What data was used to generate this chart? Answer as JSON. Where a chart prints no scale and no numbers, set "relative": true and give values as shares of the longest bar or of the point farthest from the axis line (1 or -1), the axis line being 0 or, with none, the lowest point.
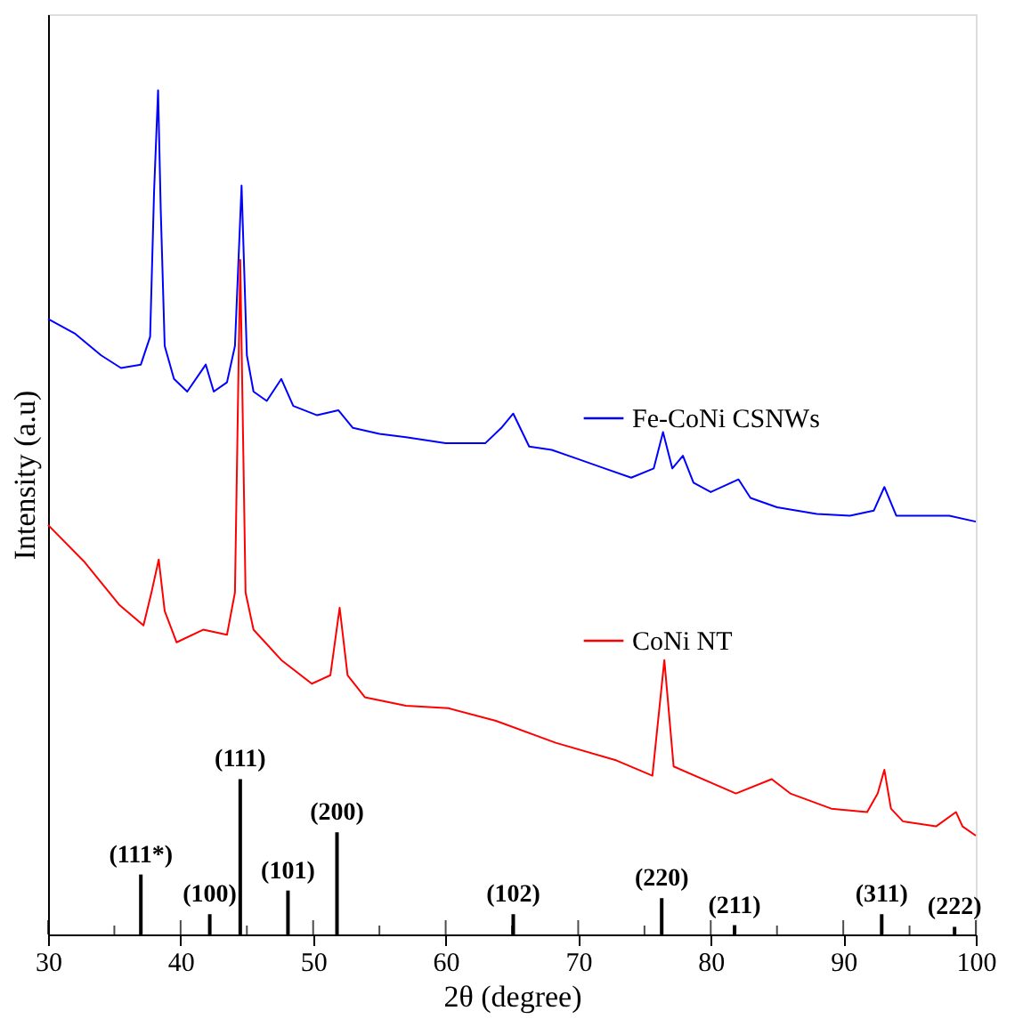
{
  "chart_data": {
    "type": "line",
    "relative": true,
    "xlabel": "2θ (degree)",
    "ylabel": "Intensity (a.u)",
    "xlim": [
      30,
      100
    ],
    "xticks": [
      30,
      {
        "value": 35,
        "label": null
      },
      40,
      {
        "value": 45,
        "label": null
      },
      50,
      {
        "value": 55,
        "label": null
      },
      60,
      {
        "value": 65,
        "label": null
      },
      70,
      {
        "value": 75,
        "label": null
      },
      80,
      {
        "value": 85,
        "label": null
      },
      90,
      {
        "value": 95,
        "label": null
      },
      100
    ],
    "grid": false,
    "legend": "right",
    "line_style": "solid",
    "marker": "none",
    "series": [
      {
        "name": "Fe-CoNi CSNWs",
        "color": "#0000ff",
        "x": [
          30,
          32,
          34,
          35.5,
          37,
          37.7,
          38.0,
          38.3,
          38.5,
          38.8,
          39.5,
          40.5,
          41.9,
          42.5,
          43.5,
          44.1,
          44.6,
          45.0,
          45.5,
          46.5,
          47.6,
          48.5,
          50.3,
          51.9,
          53,
          55,
          57,
          60,
          63,
          64.2,
          65.1,
          66.3,
          68,
          70,
          72,
          74,
          75.7,
          76.4,
          77.1,
          77.9,
          78.7,
          80,
          82.1,
          83,
          85,
          88,
          90.5,
          92.3,
          93.1,
          94,
          96,
          98,
          100
        ],
        "values": [
          0.729,
          0.712,
          0.686,
          0.671,
          0.675,
          0.708,
          0.881,
          1.0,
          0.859,
          0.697,
          0.658,
          0.643,
          0.675,
          0.643,
          0.654,
          0.697,
          0.887,
          0.686,
          0.643,
          0.632,
          0.658,
          0.626,
          0.615,
          0.621,
          0.6,
          0.593,
          0.589,
          0.582,
          0.582,
          0.6,
          0.617,
          0.578,
          0.574,
          0.563,
          0.552,
          0.541,
          0.552,
          0.595,
          0.552,
          0.567,
          0.535,
          0.524,
          0.539,
          0.517,
          0.506,
          0.498,
          0.496,
          0.502,
          0.53,
          0.496,
          0.496,
          0.496,
          0.489
        ]
      },
      {
        "name": "CoNi NT",
        "color": "#ff0000",
        "x": [
          30,
          32.7,
          35.4,
          37.2,
          37.8,
          38.35,
          38.8,
          39.7,
          41.7,
          43.5,
          44.1,
          44.5,
          44.9,
          45.5,
          47.6,
          49.9,
          51.3,
          52.0,
          52.6,
          53.9,
          57,
          60.2,
          63.8,
          68.3,
          72.9,
          75.6,
          76.5,
          77.2,
          81.9,
          84.6,
          86,
          89.1,
          91.8,
          92.6,
          93.1,
          93.6,
          94.5,
          97,
          98.5,
          99,
          100
        ],
        "values": [
          0.485,
          0.442,
          0.39,
          0.366,
          0.405,
          0.444,
          0.383,
          0.346,
          0.361,
          0.355,
          0.405,
          0.799,
          0.405,
          0.361,
          0.325,
          0.297,
          0.307,
          0.387,
          0.307,
          0.281,
          0.271,
          0.268,
          0.253,
          0.227,
          0.206,
          0.188,
          0.325,
          0.199,
          0.167,
          0.184,
          0.167,
          0.149,
          0.145,
          0.167,
          0.195,
          0.149,
          0.134,
          0.128,
          0.145,
          0.128,
          0.117
        ]
      },
      {
        "type": "bar",
        "color": "#000000",
        "x": [
          37.0,
          42.2,
          44.5,
          48.1,
          51.8,
          65.1,
          76.3,
          81.8,
          92.9,
          98.4
        ],
        "values": [
          0.071,
          0.024,
          0.184,
          0.052,
          0.121,
          0.024,
          0.043,
          0.011,
          0.024,
          0.009
        ]
      }
    ],
    "annotations": [
      {
        "text": "(111*)",
        "x": 37.0,
        "y": 0.071
      },
      {
        "text": "(100)",
        "x": 42.2,
        "y": 0.024
      },
      {
        "text": "(111)",
        "x": 44.5,
        "y": 0.184
      },
      {
        "text": "(101)",
        "x": 48.1,
        "y": 0.052
      },
      {
        "text": "(200)",
        "x": 51.8,
        "y": 0.121
      },
      {
        "text": "(102)",
        "x": 65.1,
        "y": 0.024
      },
      {
        "text": "(220)",
        "x": 76.3,
        "y": 0.043
      },
      {
        "text": "(211)",
        "x": 81.8,
        "y": 0.011
      },
      {
        "text": "(311)",
        "x": 92.9,
        "y": 0.024
      },
      {
        "text": "(222)",
        "x": 98.4,
        "y": 0.009
      }
    ]
  }
}
